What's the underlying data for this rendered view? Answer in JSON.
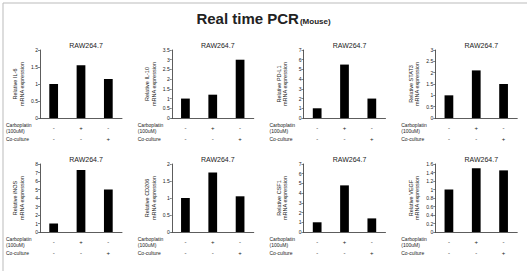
{
  "title": "Real time PCR",
  "subtitle": "(Mouse)",
  "chart_data": [
    {
      "type": "bar",
      "title": "RAW264.7",
      "y_label": "Relative IL-6\nmRNA expression",
      "categories": [
        null,
        null,
        null
      ],
      "values": [
        1,
        1.55,
        1.15
      ],
      "color": "#000000",
      "ylim": [
        0,
        2
      ],
      "yticks": [
        0,
        0.5,
        1,
        1.5,
        2
      ],
      "grid": false,
      "conditions": [
        {
          "label": "Carboplatin\n(100uM)",
          "signs": [
            "-",
            "+",
            "-"
          ]
        },
        {
          "label": "Co-culture",
          "signs": [
            "-",
            "-",
            "+"
          ]
        }
      ]
    },
    {
      "type": "bar",
      "title": "RAW264.7",
      "y_label": "Relative IL-10\nmRNA expression",
      "categories": [
        null,
        null,
        null
      ],
      "values": [
        1,
        1.2,
        3.0
      ],
      "color": "#000000",
      "ylim": [
        0,
        3.5
      ],
      "yticks": [
        0,
        0.5,
        1,
        1.5,
        2,
        2.5,
        3,
        3.5
      ],
      "grid": false,
      "conditions": [
        {
          "label": "Carboplatin\n(100uM)",
          "signs": [
            "-",
            "+",
            "-"
          ]
        },
        {
          "label": "Co-culture",
          "signs": [
            "-",
            "-",
            "+"
          ]
        }
      ]
    },
    {
      "type": "bar",
      "title": "RAW264.7",
      "y_label": "Relative PD-L1\nmRNA expression",
      "categories": [
        null,
        null,
        null
      ],
      "values": [
        1,
        5.5,
        2
      ],
      "color": "#000000",
      "ylim": [
        0,
        7
      ],
      "yticks": [
        0,
        1,
        2,
        3,
        4,
        5,
        6,
        7
      ],
      "grid": false,
      "conditions": [
        {
          "label": "Carboplatin\n(100uM)",
          "signs": [
            "-",
            "+",
            "-"
          ]
        },
        {
          "label": "Co-culture",
          "signs": [
            "-",
            "-",
            "+"
          ]
        }
      ]
    },
    {
      "type": "bar",
      "title": "RAW264.7",
      "y_label": "Relative STAT3\nmRNA expression",
      "categories": [
        null,
        null,
        null
      ],
      "values": [
        1,
        2.1,
        1.5
      ],
      "color": "#000000",
      "ylim": [
        0,
        3
      ],
      "yticks": [
        0,
        0.5,
        1,
        1.5,
        2,
        2.5,
        3
      ],
      "grid": false,
      "conditions": [
        {
          "label": "Carboplatin\n(100uM)",
          "signs": [
            "-",
            "+",
            "-"
          ]
        },
        {
          "label": "Co-culture",
          "signs": [
            "-",
            "-",
            "+"
          ]
        }
      ]
    },
    {
      "type": "bar",
      "title": "RAW264.7",
      "y_label": "Relative iNOS\nmRNA expression",
      "categories": [
        null,
        null,
        null
      ],
      "values": [
        1,
        7.3,
        5
      ],
      "color": "#000000",
      "ylim": [
        0,
        8
      ],
      "yticks": [
        0,
        1,
        2,
        3,
        4,
        5,
        6,
        7,
        8
      ],
      "grid": false,
      "conditions": [
        {
          "label": "Carboplatin\n(100uM)",
          "signs": [
            "-",
            "+",
            "-"
          ]
        },
        {
          "label": "Co-culture",
          "signs": [
            "-",
            "-",
            "+"
          ]
        }
      ]
    },
    {
      "type": "bar",
      "title": "RAW264.7",
      "y_label": "Relative CD206\nmRNA expression",
      "categories": [
        null,
        null,
        null
      ],
      "values": [
        1,
        1.75,
        1.05
      ],
      "color": "#000000",
      "ylim": [
        0,
        2
      ],
      "yticks": [
        0,
        0.5,
        1,
        1.5,
        2
      ],
      "grid": false,
      "conditions": [
        {
          "label": "Carboplatin\n(100uM)",
          "signs": [
            "-",
            "+",
            "-"
          ]
        },
        {
          "label": "Co-culture",
          "signs": [
            "-",
            "-",
            "+"
          ]
        }
      ]
    },
    {
      "type": "bar",
      "title": "RAW264.7",
      "y_label": "Relative CSF1\nmRNA expression",
      "categories": [
        null,
        null,
        null
      ],
      "values": [
        1,
        4.8,
        1.4
      ],
      "color": "#000000",
      "ylim": [
        0,
        7
      ],
      "yticks": [
        0,
        1,
        2,
        3,
        4,
        5,
        6,
        7
      ],
      "grid": false,
      "conditions": [
        {
          "label": "Carboplatin\n(100uM)",
          "signs": [
            "-",
            "+",
            "-"
          ]
        },
        {
          "label": "Co-culture",
          "signs": [
            "-",
            "-",
            "+"
          ]
        }
      ]
    },
    {
      "type": "bar",
      "title": "RAW264.7",
      "y_label": "Relative VEGF\nmRNA expression",
      "categories": [
        null,
        null,
        null
      ],
      "values": [
        1,
        1.5,
        1.45
      ],
      "color": "#000000",
      "ylim": [
        0,
        1.6
      ],
      "yticks": [
        0,
        0.2,
        0.4,
        0.6,
        0.8,
        1,
        1.2,
        1.4,
        1.6
      ],
      "grid": false,
      "conditions": [
        {
          "label": "Carboplatin\n(100uM)",
          "signs": [
            "-",
            "+",
            "-"
          ]
        },
        {
          "label": "Co-culture",
          "signs": [
            "-",
            "-",
            "+"
          ]
        }
      ]
    }
  ]
}
